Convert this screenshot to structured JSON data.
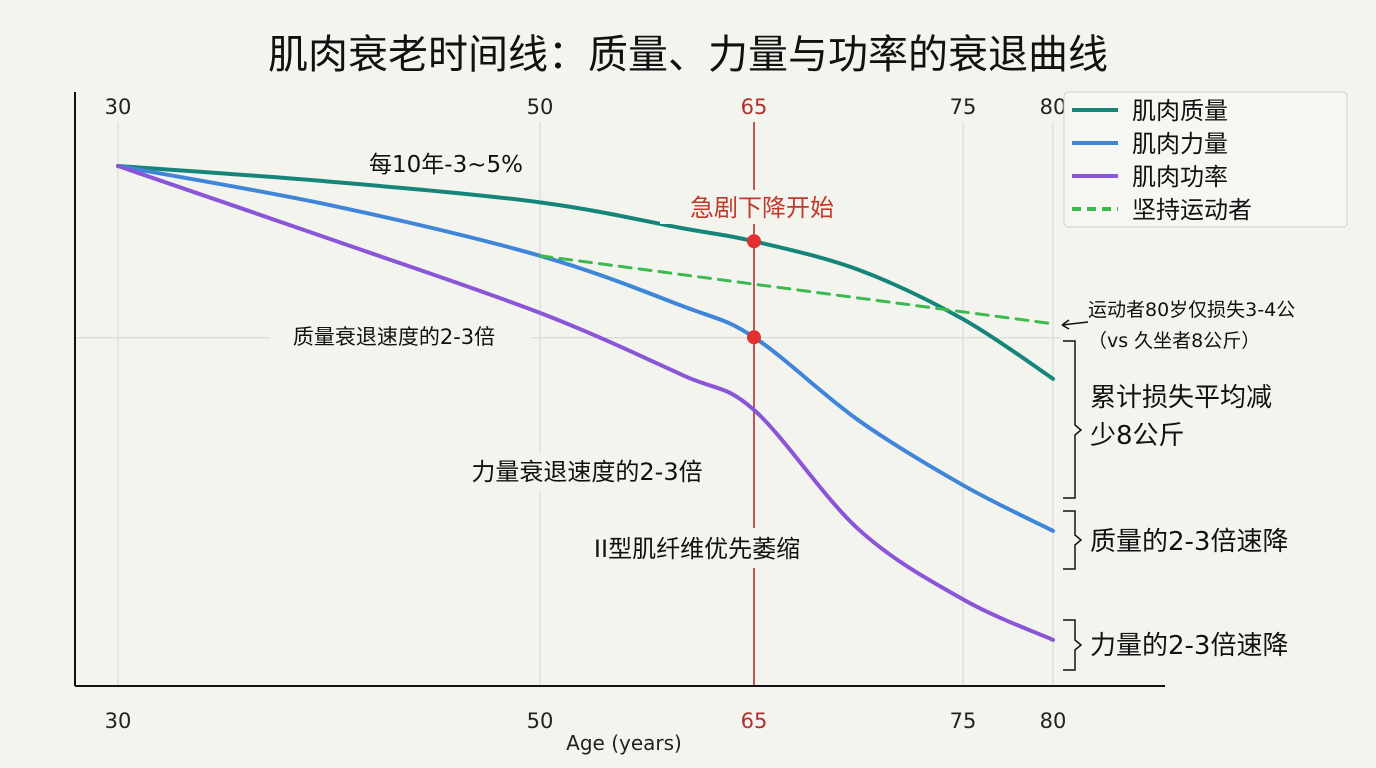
{
  "chart_data": {
    "type": "line",
    "title": "肌肉衰老时间线：质量、力量与功率的衰退曲线",
    "xlabel": "Age (years)",
    "ylabel": "",
    "x_ticks": [
      30,
      50,
      65,
      75,
      80
    ],
    "highlight_tick": 65,
    "xlim": [
      30,
      80
    ],
    "ylim": [
      0,
      100
    ],
    "grid": true,
    "legend_position": "top-right",
    "x": [
      30,
      40,
      50,
      60,
      65,
      70,
      75,
      80
    ],
    "series": [
      {
        "name": "肌肉质量",
        "color": "#15857a",
        "style": "solid",
        "values": [
          100,
          97,
          93,
          88,
          85.5,
          80,
          70.5,
          59
        ]
      },
      {
        "name": "肌肉力量",
        "color": "#3f86d8",
        "style": "solid",
        "values": [
          100,
          92.5,
          82.7,
          73,
          67,
          51,
          38.5,
          29.7
        ]
      },
      {
        "name": "肌肉功率",
        "color": "#8a55d6",
        "style": "solid",
        "values": [
          100,
          86,
          71.7,
          59.7,
          53,
          30,
          16.5,
          8.7
        ]
      },
      {
        "name": "坚持运动者",
        "color": "#3cb94f",
        "style": "dashed",
        "x": [
          50,
          80
        ],
        "values": [
          82.7,
          69.6
        ]
      }
    ],
    "markers": [
      {
        "x": 65,
        "series": "肌肉质量",
        "value": 85.5,
        "color": "#e03030"
      },
      {
        "x": 65,
        "series": "肌肉力量",
        "value": 67,
        "color": "#e03030"
      }
    ],
    "annotations": {
      "mass_rate": "每10年-3~5%",
      "sharp_decline": "急剧下降开始",
      "strength_rate": "质量衰退速度的2-3倍",
      "power_rate": "力量衰退速度的2-3倍",
      "type2_fiber": "II型肌纤维优先萎缩",
      "exerciser_line1": "运动者80岁仅损失3-4公",
      "exerciser_line2": "（vs 久坐者8公斤）",
      "mass_loss_line1": "累计损失平均减",
      "mass_loss_line2": "少8公斤",
      "strength_drop": "质量的2-3倍速降",
      "power_drop": "力量的2-3倍速降"
    }
  }
}
